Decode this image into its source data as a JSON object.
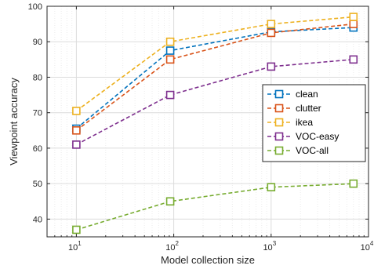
{
  "chart_data": {
    "type": "line",
    "title": "",
    "xlabel": "Model collection size",
    "ylabel": "Viewpoint accuracy",
    "xscale": "log",
    "xlim": [
      5,
      10000
    ],
    "ylim": [
      35,
      100
    ],
    "xticks": [
      {
        "value": 10,
        "base": "10",
        "exp": "1"
      },
      {
        "value": 100,
        "base": "10",
        "exp": "2"
      },
      {
        "value": 1000,
        "base": "10",
        "exp": "3"
      },
      {
        "value": 10000,
        "base": "10",
        "exp": "4"
      }
    ],
    "yticks": [
      "40",
      "50",
      "60",
      "70",
      "80",
      "90",
      "100"
    ],
    "grid": true,
    "legend_position": "right",
    "x": [
      10,
      92,
      1000,
      7000
    ],
    "series": [
      {
        "name": "clean",
        "color": "#0072bd",
        "values": [
          65.5,
          87.5,
          92.8,
          94
        ]
      },
      {
        "name": "clutter",
        "color": "#d95319",
        "values": [
          65,
          85,
          92.5,
          95
        ]
      },
      {
        "name": "ikea",
        "color": "#edb120",
        "values": [
          70.5,
          90,
          95,
          97
        ]
      },
      {
        "name": "VOC-easy",
        "color": "#7e2f8e",
        "values": [
          61,
          75,
          83,
          85
        ]
      },
      {
        "name": "VOC-all",
        "color": "#77ac30",
        "values": [
          37,
          45,
          49,
          50
        ]
      }
    ]
  }
}
